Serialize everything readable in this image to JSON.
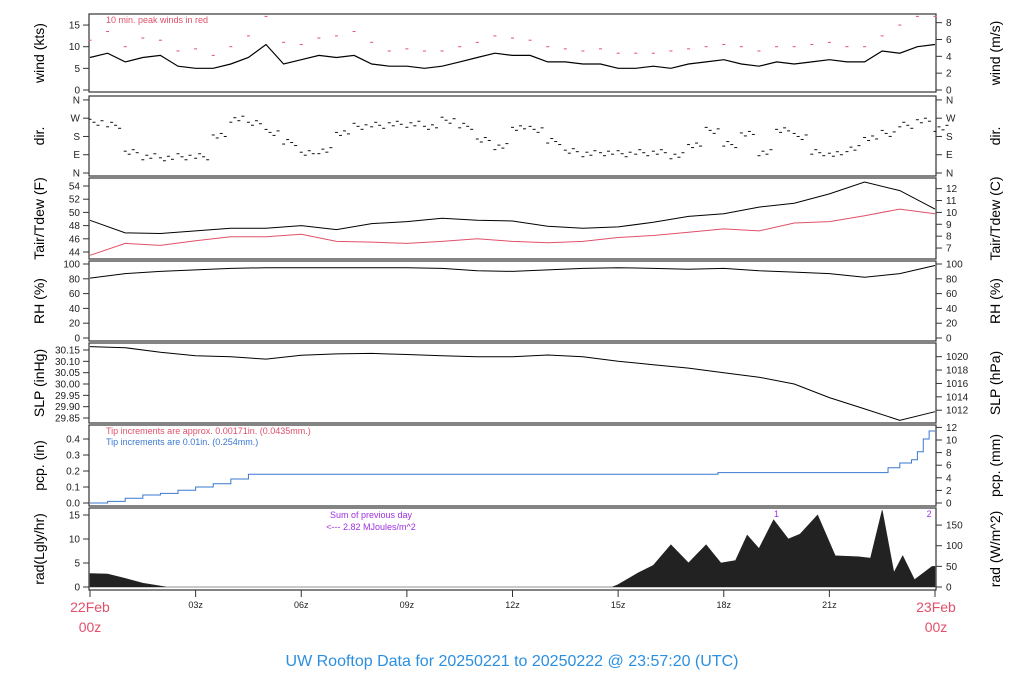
{
  "title": "UW Rooftop Data for 20250221  to  20250222 @ 23:57:20  (UTC)",
  "colors": {
    "primary": "#000000",
    "peak": "#e0506a",
    "dew": "#e0506a",
    "pcp_old": "#e0506a",
    "pcp": "#3a78d0",
    "annot": "#a030e0",
    "title": "#2b8fe0",
    "date": "#e0506a"
  },
  "x_axis": {
    "ticks": [
      {
        "t": "03:00",
        "label": "03z"
      },
      {
        "t": "06:00",
        "label": "06z"
      },
      {
        "t": "09:00",
        "label": "09z"
      },
      {
        "t": "12:00",
        "label": "12z"
      },
      {
        "t": "15:00",
        "label": "15z"
      },
      {
        "t": "18:00",
        "label": "18z"
      },
      {
        "t": "21:00",
        "label": "21z"
      }
    ],
    "start": {
      "day": "22Feb",
      "hour": "00z"
    },
    "end": {
      "day": "23Feb",
      "hour": "00z"
    }
  },
  "chart_data": [
    {
      "type": "line",
      "id": "wind",
      "ylabel": "wind (kts)",
      "ylabel_right": "wind (m/s)",
      "yticks": [
        0,
        5,
        10,
        15
      ],
      "yticks_right": [
        0,
        2,
        4,
        6,
        8
      ],
      "ylim": [
        0,
        16.5
      ],
      "annotation": "10 min. peak winds in red",
      "times": [
        "00:00",
        "00:30",
        "01:00",
        "01:30",
        "02:00",
        "02:30",
        "03:00",
        "03:30",
        "04:00",
        "04:30",
        "05:00",
        "05:30",
        "06:00",
        "06:30",
        "07:00",
        "07:30",
        "08:00",
        "08:30",
        "09:00",
        "09:30",
        "10:00",
        "10:30",
        "11:00",
        "11:30",
        "12:00",
        "12:30",
        "13:00",
        "13:30",
        "14:00",
        "14:30",
        "15:00",
        "15:30",
        "16:00",
        "16:30",
        "17:00",
        "17:30",
        "18:00",
        "18:30",
        "19:00",
        "19:30",
        "20:00",
        "20:30",
        "21:00",
        "21:30",
        "22:00",
        "22:30",
        "23:00",
        "23:30",
        "24:00"
      ],
      "series": [
        {
          "role": "wind",
          "values": [
            7.5,
            8.5,
            6.5,
            7.5,
            8,
            5.5,
            5,
            5,
            6,
            7.5,
            10.5,
            6,
            7,
            8,
            7.5,
            8,
            6,
            5.5,
            5.5,
            5,
            5.5,
            6.5,
            7.5,
            8.5,
            8,
            8,
            6.5,
            6.5,
            6,
            6,
            5,
            5,
            5.5,
            5,
            6,
            6.5,
            7,
            6,
            5.5,
            6.5,
            6,
            6.5,
            7,
            6.5,
            6.5,
            9,
            8.5,
            10,
            10.5
          ]
        },
        {
          "role": "peak",
          "values": [
            11.5,
            13.5,
            10,
            12,
            11.5,
            9,
            9.5,
            8,
            10,
            12.5,
            17,
            11,
            10.5,
            12,
            12.5,
            13.5,
            11,
            9,
            9.5,
            9,
            9,
            10,
            11,
            12.5,
            12,
            11.5,
            10,
            9.5,
            9,
            9.5,
            8.5,
            8.5,
            8.5,
            9,
            9.5,
            10,
            10.5,
            10,
            9,
            10,
            10,
            10.5,
            11,
            10,
            10,
            12.5,
            15,
            17,
            17
          ]
        }
      ]
    },
    {
      "type": "scatter",
      "id": "dir",
      "ylabel": "dir.",
      "ylabel_right": "dir.",
      "yticks": [
        {
          "v": 0,
          "label": "N"
        },
        {
          "v": 90,
          "label": "E"
        },
        {
          "v": 180,
          "label": "S"
        },
        {
          "v": 270,
          "label": "W"
        },
        {
          "v": 360,
          "label": "N"
        }
      ],
      "times": [
        "00:00",
        "00:30",
        "01:00",
        "01:30",
        "02:00",
        "02:30",
        "03:00",
        "03:30",
        "04:00",
        "04:30",
        "05:00",
        "05:30",
        "06:00",
        "06:30",
        "07:00",
        "07:30",
        "08:00",
        "08:30",
        "09:00",
        "09:30",
        "10:00",
        "10:30",
        "11:00",
        "11:30",
        "12:00",
        "12:30",
        "13:00",
        "13:30",
        "14:00",
        "14:30",
        "15:00",
        "15:30",
        "16:00",
        "16:30",
        "17:00",
        "17:30",
        "18:00",
        "18:30",
        "19:00",
        "19:30",
        "20:00",
        "20:30",
        "21:00",
        "21:30",
        "22:00",
        "22:30",
        "23:00",
        "23:30",
        "24:00"
      ],
      "values": [
        250,
        235,
        100,
        80,
        75,
        80,
        80,
        180,
        265,
        250,
        200,
        150,
        95,
        110,
        200,
        230,
        235,
        240,
        240,
        230,
        260,
        230,
        160,
        130,
        225,
        215,
        155,
        105,
        95,
        100,
        95,
        100,
        100,
        85,
        140,
        210,
        140,
        190,
        100,
        215,
        180,
        100,
        90,
        120,
        175,
        195,
        235,
        255,
        220
      ]
    },
    {
      "type": "line",
      "id": "temp",
      "ylabel": "Tair/Tdew (F)",
      "ylabel_right": "Tair/Tdew (C)",
      "yticks": [
        44,
        46,
        48,
        50,
        52,
        54
      ],
      "yticks_right": [
        7,
        8,
        9,
        10,
        11,
        12
      ],
      "times": [
        "00:00",
        "01:00",
        "02:00",
        "03:00",
        "04:00",
        "05:00",
        "06:00",
        "07:00",
        "08:00",
        "09:00",
        "10:00",
        "11:00",
        "12:00",
        "13:00",
        "14:00",
        "15:00",
        "16:00",
        "17:00",
        "18:00",
        "19:00",
        "20:00",
        "21:00",
        "22:00",
        "23:00",
        "24:00"
      ],
      "series": [
        {
          "role": "tair",
          "values": [
            48.8,
            46.9,
            46.8,
            47.2,
            47.6,
            47.6,
            48.0,
            47.4,
            48.3,
            48.6,
            49.1,
            48.8,
            48.7,
            47.9,
            47.6,
            47.8,
            48.5,
            49.4,
            49.8,
            50.8,
            51.4,
            52.8,
            54.6,
            53.3,
            50.5
          ]
        },
        {
          "role": "tdew",
          "values": [
            43.5,
            45.3,
            45.0,
            45.7,
            46.3,
            46.3,
            46.7,
            45.6,
            45.5,
            45.3,
            45.6,
            46.0,
            45.6,
            45.4,
            45.6,
            46.2,
            46.5,
            47.0,
            47.5,
            47.2,
            48.4,
            48.6,
            49.5,
            50.5,
            49.8
          ]
        }
      ]
    },
    {
      "type": "line",
      "id": "rh",
      "ylabel": "RH (%)",
      "ylabel_right": "RH (%)",
      "yticks": [
        0,
        20,
        40,
        60,
        80,
        100
      ],
      "times": [
        "00:00",
        "01:00",
        "02:00",
        "03:00",
        "04:00",
        "05:00",
        "06:00",
        "07:00",
        "08:00",
        "09:00",
        "10:00",
        "11:00",
        "12:00",
        "13:00",
        "14:00",
        "15:00",
        "16:00",
        "17:00",
        "18:00",
        "19:00",
        "20:00",
        "21:00",
        "22:00",
        "23:00",
        "24:00"
      ],
      "values": [
        81,
        87,
        90,
        92,
        94,
        95,
        95,
        95,
        95,
        95,
        94,
        91,
        90,
        92,
        94,
        95,
        94,
        93,
        94,
        91,
        89,
        87,
        82,
        87,
        98
      ]
    },
    {
      "type": "line",
      "id": "slp",
      "ylabel": "SLP (inHg)",
      "ylabel_right": "SLP (hPa)",
      "yticks": [
        29.85,
        29.9,
        29.95,
        30.0,
        30.05,
        30.1,
        30.15
      ],
      "yticks_right": [
        1012,
        1014,
        1016,
        1018,
        1020
      ],
      "times": [
        "00:00",
        "01:00",
        "02:00",
        "03:00",
        "04:00",
        "05:00",
        "06:00",
        "07:00",
        "08:00",
        "09:00",
        "10:00",
        "11:00",
        "12:00",
        "13:00",
        "14:00",
        "15:00",
        "16:00",
        "17:00",
        "18:00",
        "19:00",
        "20:00",
        "21:00",
        "22:00",
        "23:00",
        "24:00"
      ],
      "values": [
        30.165,
        30.16,
        30.14,
        30.125,
        30.12,
        30.11,
        30.127,
        30.133,
        30.135,
        30.13,
        30.125,
        30.12,
        30.12,
        30.128,
        30.12,
        30.1,
        30.085,
        30.07,
        30.05,
        30.03,
        30.0,
        29.94,
        29.89,
        29.84,
        29.878
      ]
    },
    {
      "type": "line",
      "id": "pcp",
      "ylabel": "pcp. (in)",
      "ylabel_right": "pcp. (mm)",
      "yticks": [
        0.0,
        0.1,
        0.2,
        0.3,
        0.4
      ],
      "yticks_right": [
        0,
        2,
        4,
        6,
        8,
        10,
        12
      ],
      "annotation_old": "Tip increments are approx. 0.00171in. (0.0435mm.)",
      "annotation": "Tip increments are 0.01in. (0.254mm.)",
      "times": [
        "00:00",
        "00:30",
        "01:00",
        "01:30",
        "02:00",
        "02:30",
        "03:00",
        "03:30",
        "04:00",
        "04:30",
        "17:50",
        "22:20",
        "22:40",
        "23:00",
        "23:20",
        "23:30",
        "23:40",
        "23:50",
        "24:00"
      ],
      "values": [
        0,
        0.01,
        0.03,
        0.05,
        0.06,
        0.08,
        0.1,
        0.12,
        0.15,
        0.18,
        0.19,
        0.19,
        0.22,
        0.25,
        0.27,
        0.32,
        0.4,
        0.45,
        0.45
      ]
    },
    {
      "type": "area",
      "id": "rad",
      "ylabel": "rad(Lgly/hr)",
      "ylabel_right": "rad (W/m^2)",
      "yticks": [
        0,
        5,
        10,
        15
      ],
      "yticks_right": [
        0,
        50,
        100,
        150
      ],
      "annotation_line1": "Sum of previous day",
      "annotation_line2": "<--- 2.82 MJoules/m^2",
      "markers": [
        {
          "t": "19:30",
          "label": "1"
        },
        {
          "t": "23:50",
          "label": "2"
        }
      ],
      "times": [
        "00:00",
        "00:30",
        "01:00",
        "01:30",
        "02:00",
        "02:10",
        "14:50",
        "15:00",
        "15:35",
        "16:00",
        "16:30",
        "17:00",
        "17:30",
        "17:55",
        "18:20",
        "18:40",
        "19:00",
        "19:25",
        "19:50",
        "20:10",
        "20:40",
        "21:10",
        "21:50",
        "22:10",
        "22:30",
        "22:50",
        "23:05",
        "23:25",
        "23:55",
        "24:00"
      ],
      "values": [
        2.8,
        2.7,
        1.8,
        0.8,
        0.2,
        0,
        0,
        0.5,
        3,
        4.5,
        8.8,
        5,
        8.8,
        5,
        5.5,
        10.8,
        8,
        14,
        10,
        11,
        15,
        6.5,
        6.3,
        6,
        16,
        3,
        6.5,
        1.5,
        4.3,
        4.3
      ]
    }
  ]
}
